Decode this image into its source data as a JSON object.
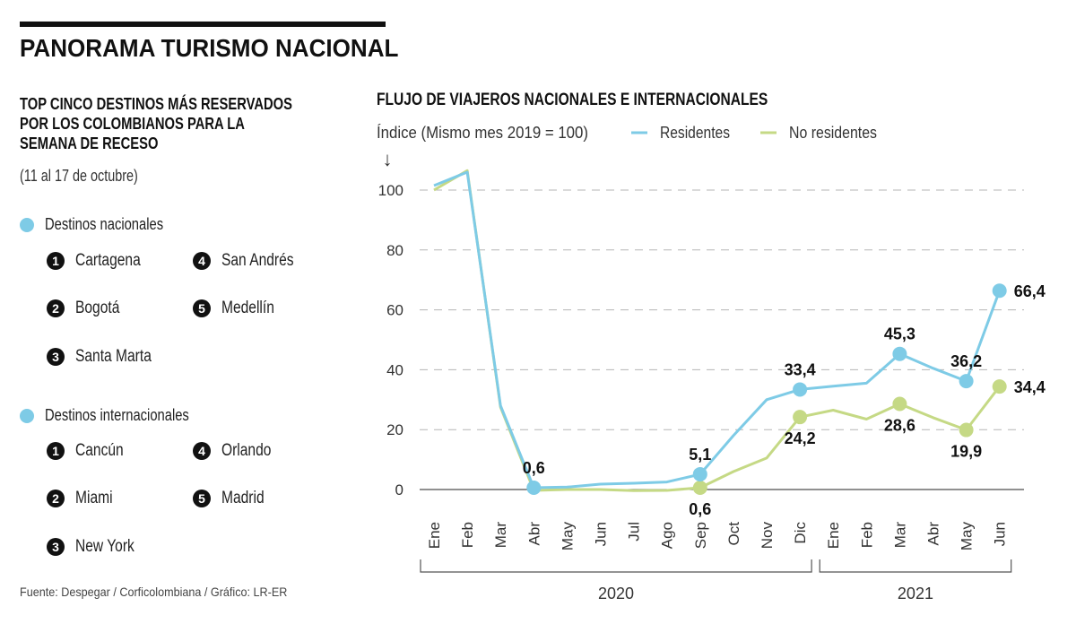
{
  "header": {
    "title": "PANORAMA TURISMO NACIONAL"
  },
  "left_panel": {
    "title_lines": [
      "TOP CINCO DESTINOS MÁS RESERVADOS",
      "POR LOS COLOMBIANOS PARA LA",
      "SEMANA DE RECESO"
    ],
    "subtitle": "(11 al 17 de octubre)",
    "groups": [
      {
        "label": "Destinos nacionales",
        "items": [
          {
            "rank": "1",
            "name": "Cartagena"
          },
          {
            "rank": "2",
            "name": "Bogotá"
          },
          {
            "rank": "3",
            "name": "Santa Marta"
          },
          {
            "rank": "4",
            "name": "San Andrés"
          },
          {
            "rank": "5",
            "name": "Medellín"
          }
        ]
      },
      {
        "label": "Destinos internacionales",
        "items": [
          {
            "rank": "1",
            "name": "Cancún"
          },
          {
            "rank": "2",
            "name": "Miami"
          },
          {
            "rank": "3",
            "name": "New York"
          },
          {
            "rank": "4",
            "name": "Orlando"
          },
          {
            "rank": "5",
            "name": "Madrid"
          }
        ]
      }
    ],
    "source": "Fuente: Despegar / Corficolombiana / Gráfico: LR-ER"
  },
  "colors": {
    "residentes": "#7ecbe6",
    "no_residentes": "#c5d985",
    "text": "#111111",
    "grid": "#b5b5b5"
  },
  "chart_data": {
    "type": "line",
    "title": "FLUJO DE VIAJEROS NACIONALES E INTERNACIONALES",
    "ylabel": "Índice (Mismo mes 2019 = 100)",
    "xlabel": "",
    "ylim": [
      0,
      100
    ],
    "yticks": [
      0,
      20,
      40,
      60,
      80,
      100
    ],
    "grid": true,
    "legend_position": "top",
    "categories": [
      "Ene",
      "Feb",
      "Mar",
      "Abr",
      "May",
      "Jun",
      "Jul",
      "Ago",
      "Sep",
      "Oct",
      "Nov",
      "Dic",
      "Ene",
      "Feb",
      "Mar",
      "Abr",
      "May",
      "Jun"
    ],
    "year_groups": [
      {
        "label": "2020",
        "start": 0,
        "end": 11
      },
      {
        "label": "2021",
        "start": 12,
        "end": 17
      }
    ],
    "series": [
      {
        "name": "Residentes",
        "values": [
          101.5,
          106,
          28,
          0.6,
          0.8,
          1.8,
          2.1,
          2.5,
          5.1,
          18,
          30,
          33.4,
          34.5,
          35.5,
          45.3,
          40.5,
          36.2,
          66.4
        ],
        "labeled_points": [
          {
            "index": 3,
            "label": "0,6",
            "pos": "above"
          },
          {
            "index": 8,
            "label": "5,1",
            "pos": "above"
          },
          {
            "index": 11,
            "label": "33,4",
            "pos": "above"
          },
          {
            "index": 14,
            "label": "45,3",
            "pos": "above"
          },
          {
            "index": 16,
            "label": "36,2",
            "pos": "above"
          },
          {
            "index": 17,
            "label": "66,4",
            "pos": "right"
          }
        ]
      },
      {
        "name": "No residentes",
        "values": [
          100,
          106.5,
          27.5,
          -0.3,
          0,
          0,
          -0.4,
          -0.3,
          0.6,
          6,
          10.5,
          24.2,
          26.5,
          23.5,
          28.6,
          24,
          19.9,
          34.4
        ],
        "labeled_points": [
          {
            "index": 8,
            "label": "0,6",
            "pos": "below"
          },
          {
            "index": 11,
            "label": "24,2",
            "pos": "below"
          },
          {
            "index": 14,
            "label": "28,6",
            "pos": "below"
          },
          {
            "index": 16,
            "label": "19,9",
            "pos": "below"
          },
          {
            "index": 17,
            "label": "34,4",
            "pos": "right"
          }
        ]
      }
    ]
  }
}
